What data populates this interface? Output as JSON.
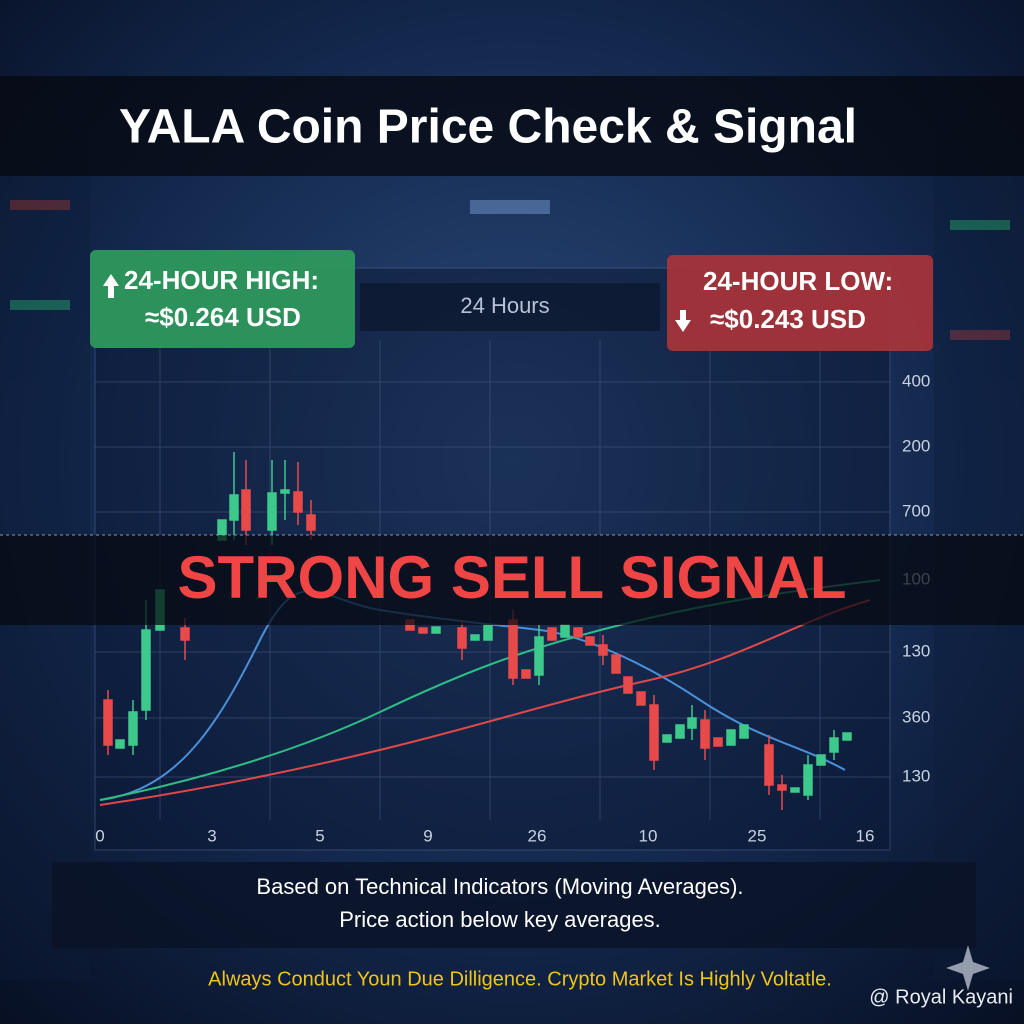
{
  "header": {
    "title": "YALA Coin Price Check & Signal"
  },
  "chart": {
    "period_label": "24 Hours",
    "y_labels": [
      "400",
      "200",
      "700",
      "100",
      "130",
      "360",
      "130"
    ],
    "x_labels": [
      "0",
      "3",
      "5",
      "9",
      "26",
      "10",
      "25",
      "16"
    ]
  },
  "high": {
    "label": "24-HOUR HIGH:",
    "value": "≈$0.264 USD"
  },
  "low": {
    "label": "24-HOUR LOW:",
    "value": "≈$0.243 USD"
  },
  "signal": "STRONG SELL SIGNAL",
  "footer": {
    "lines": [
      "Based on Technical Indicators (Moving Averages).",
      "Price action below key averages."
    ]
  },
  "disclaimer": "Always Conduct Youn Due Dilligence. Crypto Market Is Highly Voltatle.",
  "watermark": "@ Royal Kayani"
}
